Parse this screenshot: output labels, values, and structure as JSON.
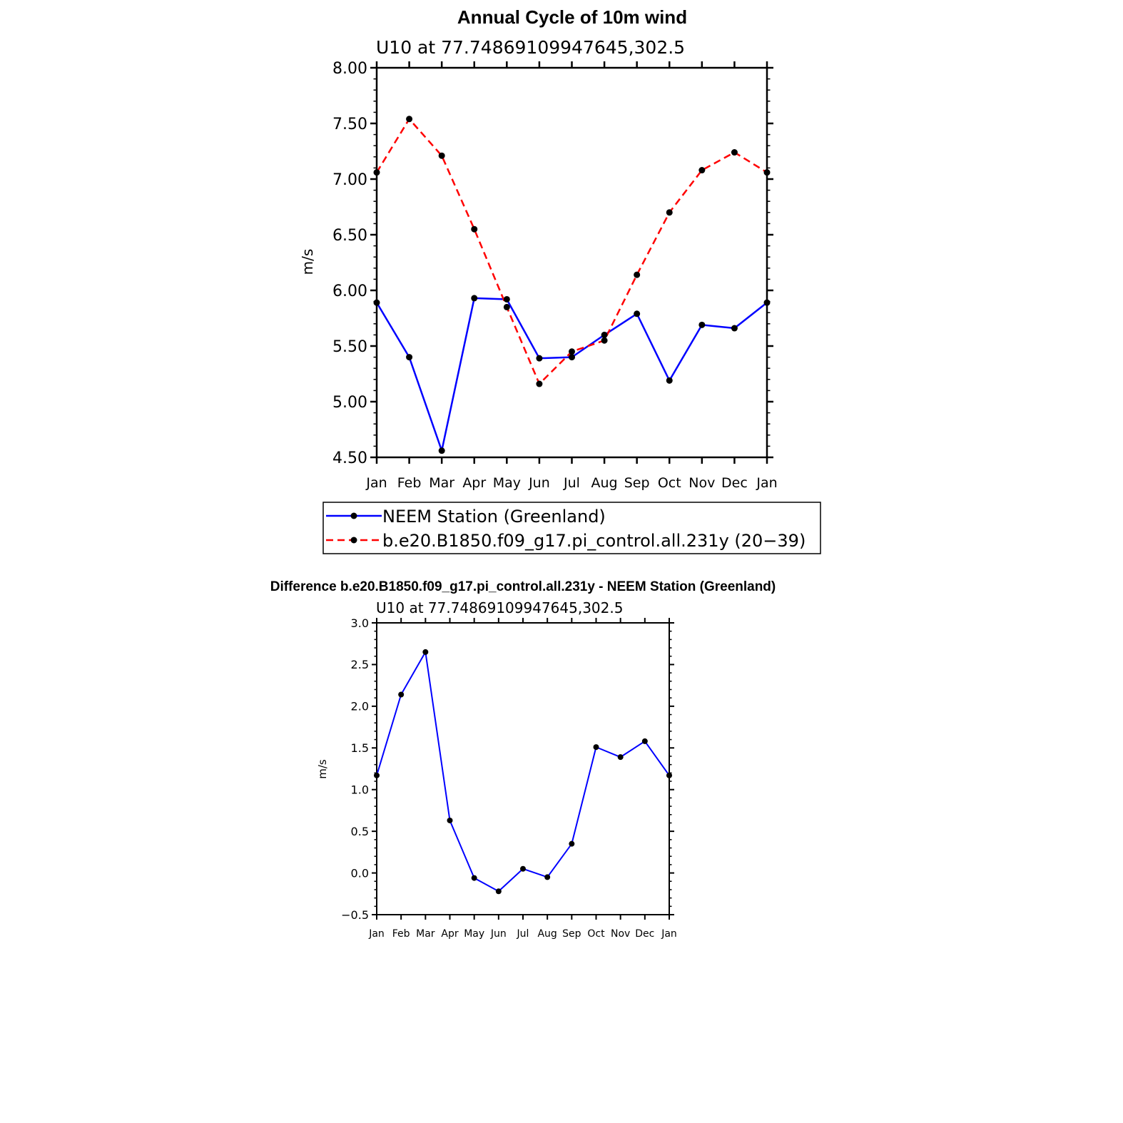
{
  "chart_data": [
    {
      "type": "line",
      "title": "Annual Cycle of 10m wind",
      "subtitle": "U10 at 77.74869109947645,302.5",
      "ylabel": "m/s",
      "ylim": [
        4.5,
        8.0
      ],
      "yticks": [
        "4.50",
        "5.00",
        "5.50",
        "6.00",
        "6.50",
        "7.00",
        "7.50",
        "8.00"
      ],
      "categories": [
        "Jan",
        "Feb",
        "Mar",
        "Apr",
        "May",
        "Jun",
        "Jul",
        "Aug",
        "Sep",
        "Oct",
        "Nov",
        "Dec",
        "Jan"
      ],
      "legend": "bottom",
      "series": [
        {
          "name": "NEEM Station (Greenland)",
          "color": "#0000ff",
          "dash": "solid",
          "values": [
            5.89,
            5.4,
            4.56,
            5.93,
            5.92,
            5.39,
            5.4,
            5.6,
            5.79,
            5.19,
            5.69,
            5.66,
            5.89
          ]
        },
        {
          "name": "b.e20.B1850.f09_g17.pi_control.all.231y (20−39)",
          "color": "#ff0000",
          "dash": "dashed",
          "values": [
            7.06,
            7.54,
            7.21,
            6.55,
            5.85,
            5.16,
            5.45,
            5.55,
            6.14,
            6.7,
            7.08,
            7.24,
            7.06
          ]
        }
      ]
    },
    {
      "type": "line",
      "title": "Difference b.e20.B1850.f09_g17.pi_control.all.231y - NEEM Station (Greenland)",
      "subtitle": "U10 at 77.74869109947645,302.5",
      "ylabel": "m/s",
      "ylim": [
        -0.5,
        3.0
      ],
      "yticks": [
        "−0.5",
        "0.0",
        "0.5",
        "1.0",
        "1.5",
        "2.0",
        "2.5",
        "3.0"
      ],
      "categories": [
        "Jan",
        "Feb",
        "Mar",
        "Apr",
        "May",
        "Jun",
        "Jul",
        "Aug",
        "Sep",
        "Oct",
        "Nov",
        "Dec",
        "Jan"
      ],
      "series": [
        {
          "color": "#0000ff",
          "dash": "solid",
          "values": [
            1.17,
            2.14,
            2.65,
            0.63,
            -0.06,
            -0.22,
            0.05,
            -0.05,
            0.35,
            1.51,
            1.39,
            1.58,
            1.17
          ]
        }
      ]
    }
  ]
}
